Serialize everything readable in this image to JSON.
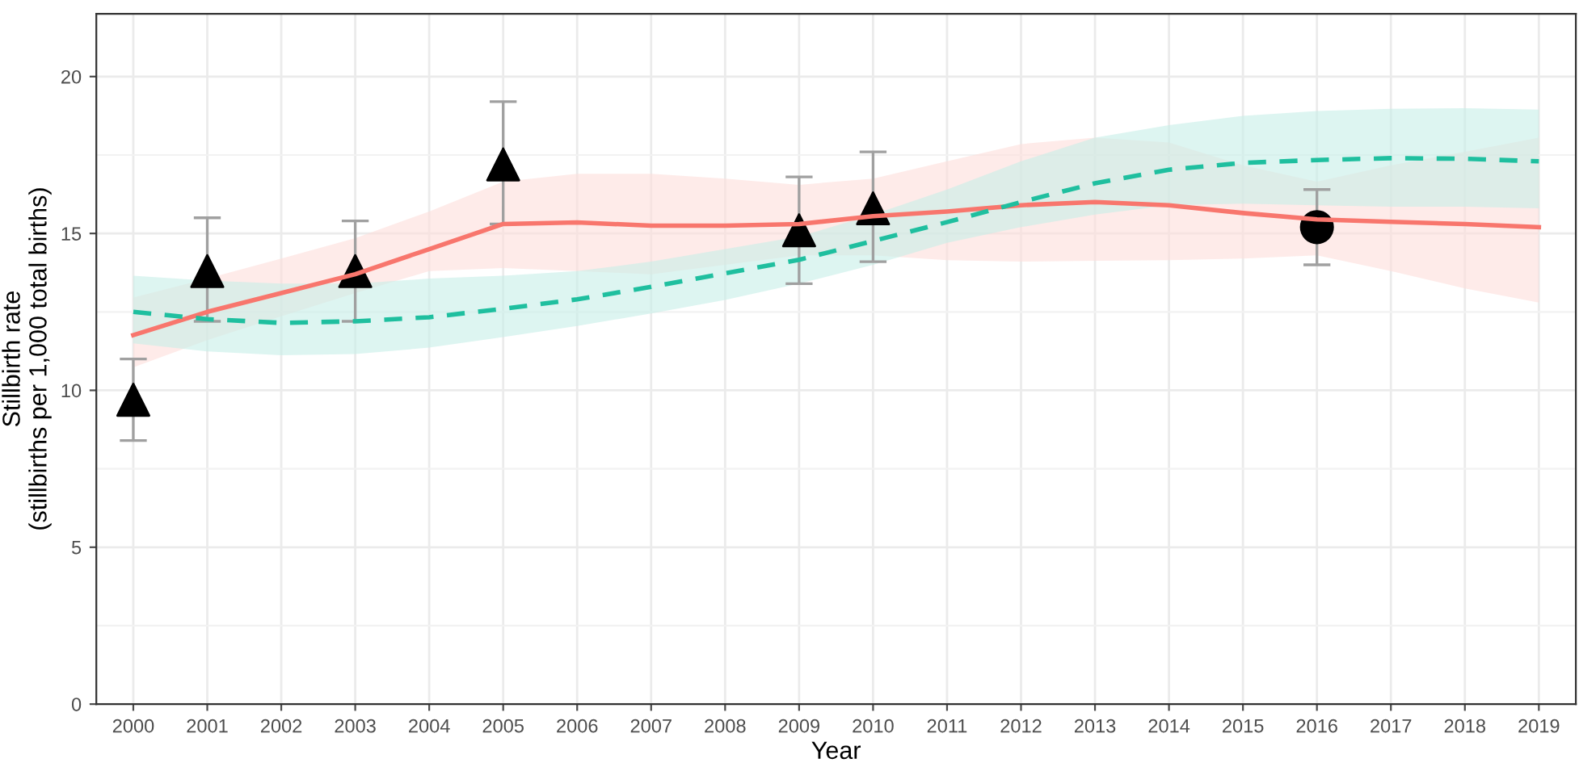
{
  "chart_data": {
    "type": "line",
    "xlabel": "Year",
    "ylabel": "Stillbirth rate\n(stillbirths per 1,000 total births)",
    "xlim": [
      1999.5,
      2019.5
    ],
    "xticks": [
      2000,
      2001,
      2002,
      2003,
      2004,
      2005,
      2006,
      2007,
      2008,
      2009,
      2010,
      2011,
      2012,
      2013,
      2014,
      2015,
      2016,
      2017,
      2018,
      2019
    ],
    "ylim": [
      0,
      22
    ],
    "yticks": [
      0,
      5,
      10,
      15,
      20
    ],
    "grid": true,
    "series": [
      {
        "color": "#f8766d",
        "line_style": "solid",
        "x": [
          2000,
          2001,
          2002,
          2003,
          2004,
          2005,
          2006,
          2007,
          2008,
          2009,
          2010,
          2011,
          2012,
          2013,
          2014,
          2015,
          2016,
          2017,
          2018,
          2019
        ],
        "values": [
          11.76,
          12.5,
          13.1,
          13.7,
          14.5,
          15.3,
          15.35,
          15.25,
          15.25,
          15.3,
          15.55,
          15.7,
          15.9,
          16.0,
          15.9,
          15.65,
          15.45,
          15.37,
          15.3,
          15.2
        ],
        "lower": [
          10.73,
          11.6,
          12.36,
          13.1,
          13.8,
          13.9,
          13.8,
          13.7,
          14.0,
          14.3,
          14.3,
          14.15,
          14.1,
          14.13,
          14.15,
          14.2,
          14.3,
          13.8,
          13.25,
          12.8
        ],
        "upper": [
          12.96,
          13.56,
          14.2,
          14.85,
          15.7,
          16.65,
          16.9,
          16.9,
          16.75,
          16.55,
          16.75,
          17.3,
          17.85,
          18.05,
          17.9,
          17.17,
          16.65,
          17.17,
          17.6,
          18.05
        ]
      },
      {
        "color": "#1fbf9f",
        "line_style": "dashed",
        "x": [
          2000,
          2001,
          2002,
          2003,
          2004,
          2005,
          2006,
          2007,
          2008,
          2009,
          2010,
          2011,
          2012,
          2013,
          2014,
          2015,
          2016,
          2017,
          2018,
          2019
        ],
        "values": [
          12.5,
          12.27,
          12.15,
          12.2,
          12.33,
          12.6,
          12.9,
          13.3,
          13.73,
          14.16,
          14.76,
          15.36,
          16.0,
          16.6,
          17.03,
          17.25,
          17.34,
          17.4,
          17.38,
          17.3
        ],
        "lower": [
          11.5,
          11.24,
          11.12,
          11.16,
          11.36,
          11.7,
          12.05,
          12.45,
          12.88,
          13.4,
          14.0,
          14.7,
          15.2,
          15.6,
          15.9,
          15.95,
          15.9,
          15.85,
          15.85,
          15.8
        ],
        "upper": [
          13.65,
          13.5,
          13.4,
          13.4,
          13.56,
          13.65,
          13.8,
          14.1,
          14.5,
          14.9,
          15.6,
          16.4,
          17.3,
          18.05,
          18.45,
          18.75,
          18.9,
          18.97,
          18.99,
          18.95
        ]
      },
      {
        "type": "scatter",
        "color": "#000000",
        "marker": "triangle",
        "x": [
          2000,
          2001,
          2003,
          2005,
          2009,
          2010
        ],
        "values": [
          9.7,
          13.8,
          13.8,
          17.2,
          15.1,
          15.8
        ],
        "errors": [
          [
            8.4,
            11.0
          ],
          [
            12.2,
            15.5
          ],
          [
            12.2,
            15.4
          ],
          [
            15.3,
            19.2
          ],
          [
            13.4,
            16.8
          ],
          [
            14.1,
            17.6
          ]
        ]
      },
      {
        "type": "scatter",
        "color": "#000000",
        "marker": "circle",
        "x": [
          2016
        ],
        "values": [
          15.2
        ],
        "errors": [
          [
            14.0,
            16.4
          ]
        ]
      }
    ]
  }
}
